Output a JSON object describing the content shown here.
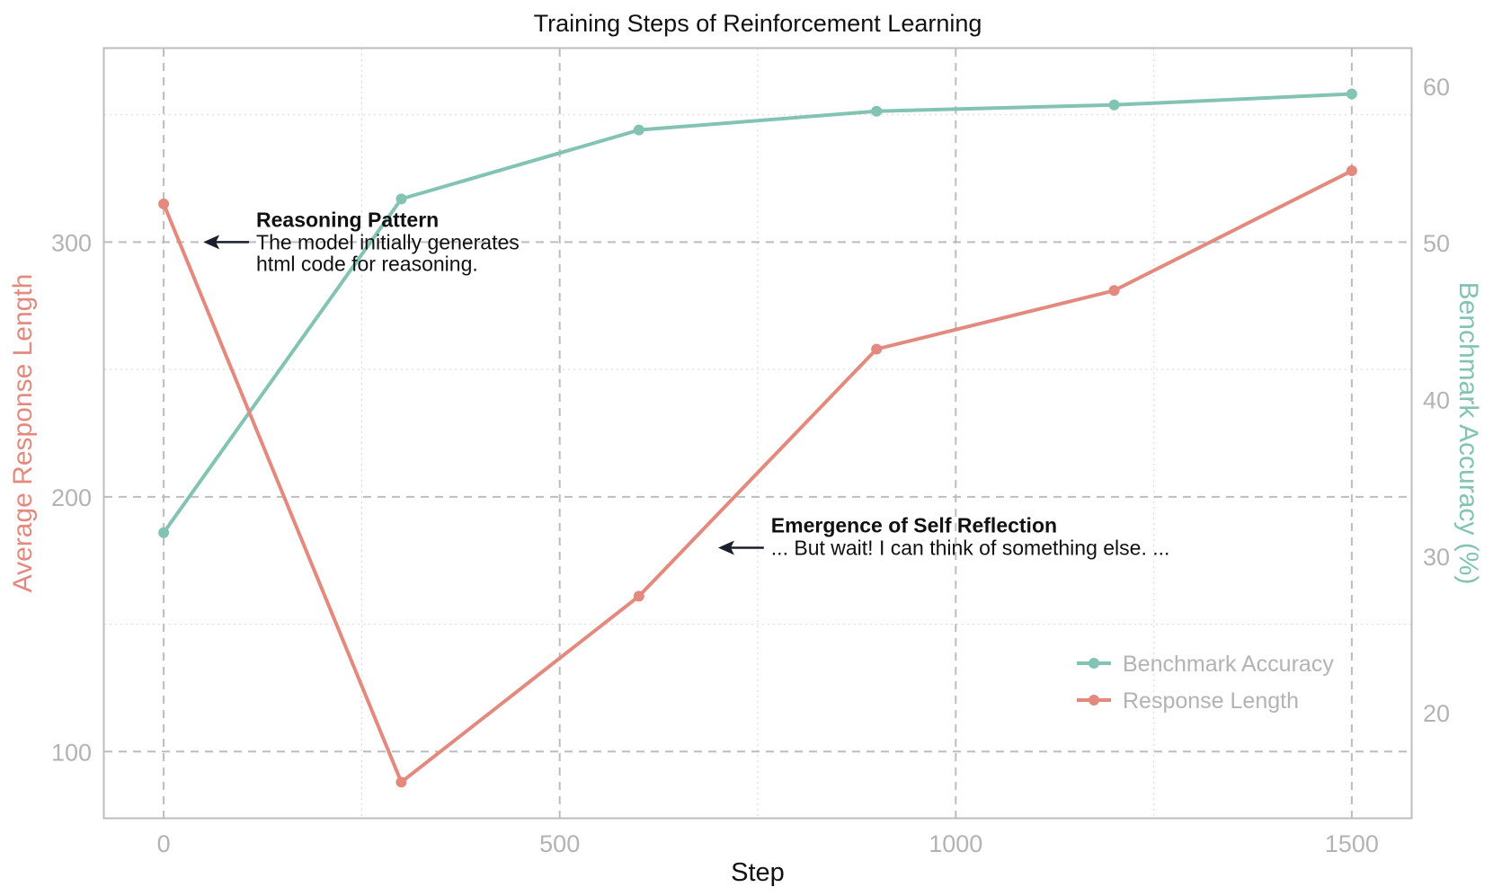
{
  "chart_data": {
    "type": "line",
    "title": "Training Steps of Reinforcement Learning",
    "xlabel": "Step",
    "ylabel_left": "Average Response Length",
    "ylabel_right": "Benchmark Accuracy (%)",
    "xlim": [
      -75,
      1575
    ],
    "ylim_left": [
      74,
      376
    ],
    "ylim_right": [
      13.3,
      62.4
    ],
    "x_ticks": [
      0,
      500,
      1000,
      1500
    ],
    "y_left_ticks": [
      100,
      200,
      300
    ],
    "y_right_ticks": [
      20,
      30,
      40,
      50,
      60
    ],
    "grid": true,
    "legend_position": "lower-right",
    "series": [
      {
        "name": "Benchmark Accuracy",
        "axis": "right",
        "color": "#82c3b3",
        "x": [
          0,
          300,
          600,
          900,
          1200,
          1500
        ],
        "values": [
          31.5,
          52.8,
          57.2,
          58.4,
          58.8,
          59.5
        ]
      },
      {
        "name": "Response Length",
        "axis": "left",
        "color": "#e3897d",
        "x": [
          0,
          300,
          600,
          900,
          1200,
          1500
        ],
        "values": [
          315,
          88,
          161,
          258,
          281,
          328
        ]
      }
    ],
    "annotations": [
      {
        "title": "Reasoning Pattern",
        "lines": [
          "The model initially generates",
          "html code for reasoning."
        ],
        "arrow_x": 50,
        "arrow_y": 300,
        "text_x": 110
      },
      {
        "title": "Emergence of Self Reflection",
        "lines": [
          "... But wait! I can think of something else. ..."
        ],
        "arrow_x": 700,
        "arrow_y": 180,
        "text_x": 760
      }
    ],
    "colors": {
      "axis": "#bdbdbd",
      "grid": "#bdbdbd",
      "tick_text": "#b3b3b3",
      "arrow": "#1a1f2b"
    }
  }
}
